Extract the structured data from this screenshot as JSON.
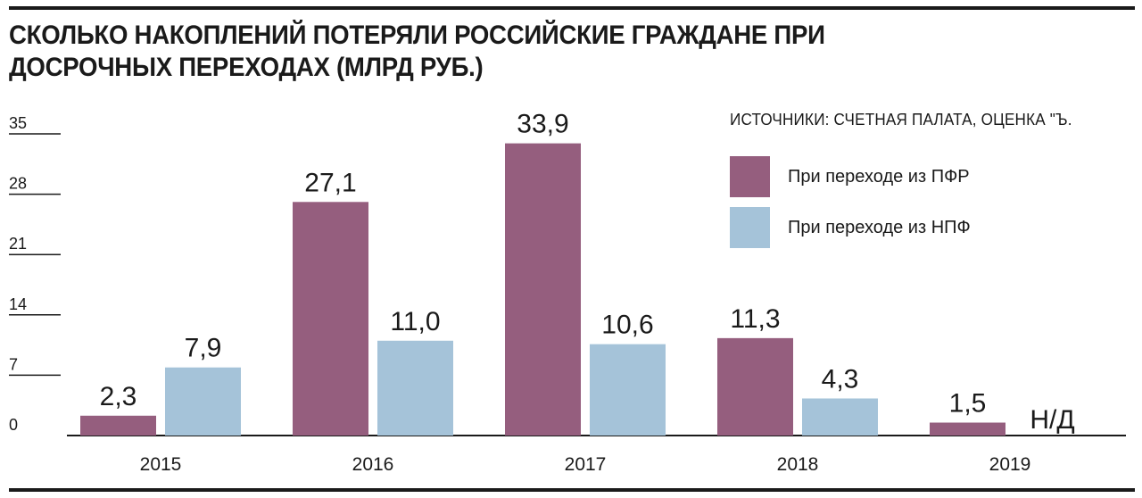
{
  "title": "СКОЛЬКО НАКОПЛЕНИЙ ПОТЕРЯЛИ РОССИЙСКИЕ ГРАЖДАНЕ ПРИ ДОСРОЧНЫХ ПЕРЕХОДАХ (МЛРД РУБ.)",
  "source": "ИСТОЧНИКИ: СЧЕТНАЯ ПАЛАТА, ОЦЕНКА \"Ъ.",
  "colors": {
    "pfr": "#955e7e",
    "npf": "#a5c3d9"
  },
  "chart_data": {
    "type": "bar",
    "title": "СКОЛЬКО НАКОПЛЕНИЙ ПОТЕРЯЛИ РОССИЙСКИЕ ГРАЖДАНЕ ПРИ ДОСРОЧНЫХ ПЕРЕХОДАХ (МЛРД РУБ.)",
    "categories": [
      "2015",
      "2016",
      "2017",
      "2018",
      "2019"
    ],
    "series": [
      {
        "name": "При переходе из ПФР",
        "values": [
          2.3,
          27.1,
          33.9,
          11.3,
          1.5
        ],
        "labels": [
          "2,3",
          "27,1",
          "33,9",
          "11,3",
          "1,5"
        ]
      },
      {
        "name": "При переходе из НПФ",
        "values": [
          7.9,
          11.0,
          10.6,
          4.3,
          null
        ],
        "labels": [
          "7,9",
          "11,0",
          "10,6",
          "4,3",
          "Н/Д"
        ]
      }
    ],
    "ylim": [
      0,
      35
    ],
    "yticks": [
      0,
      7,
      14,
      21,
      28,
      35
    ],
    "grid": false,
    "legend": "top-right"
  }
}
